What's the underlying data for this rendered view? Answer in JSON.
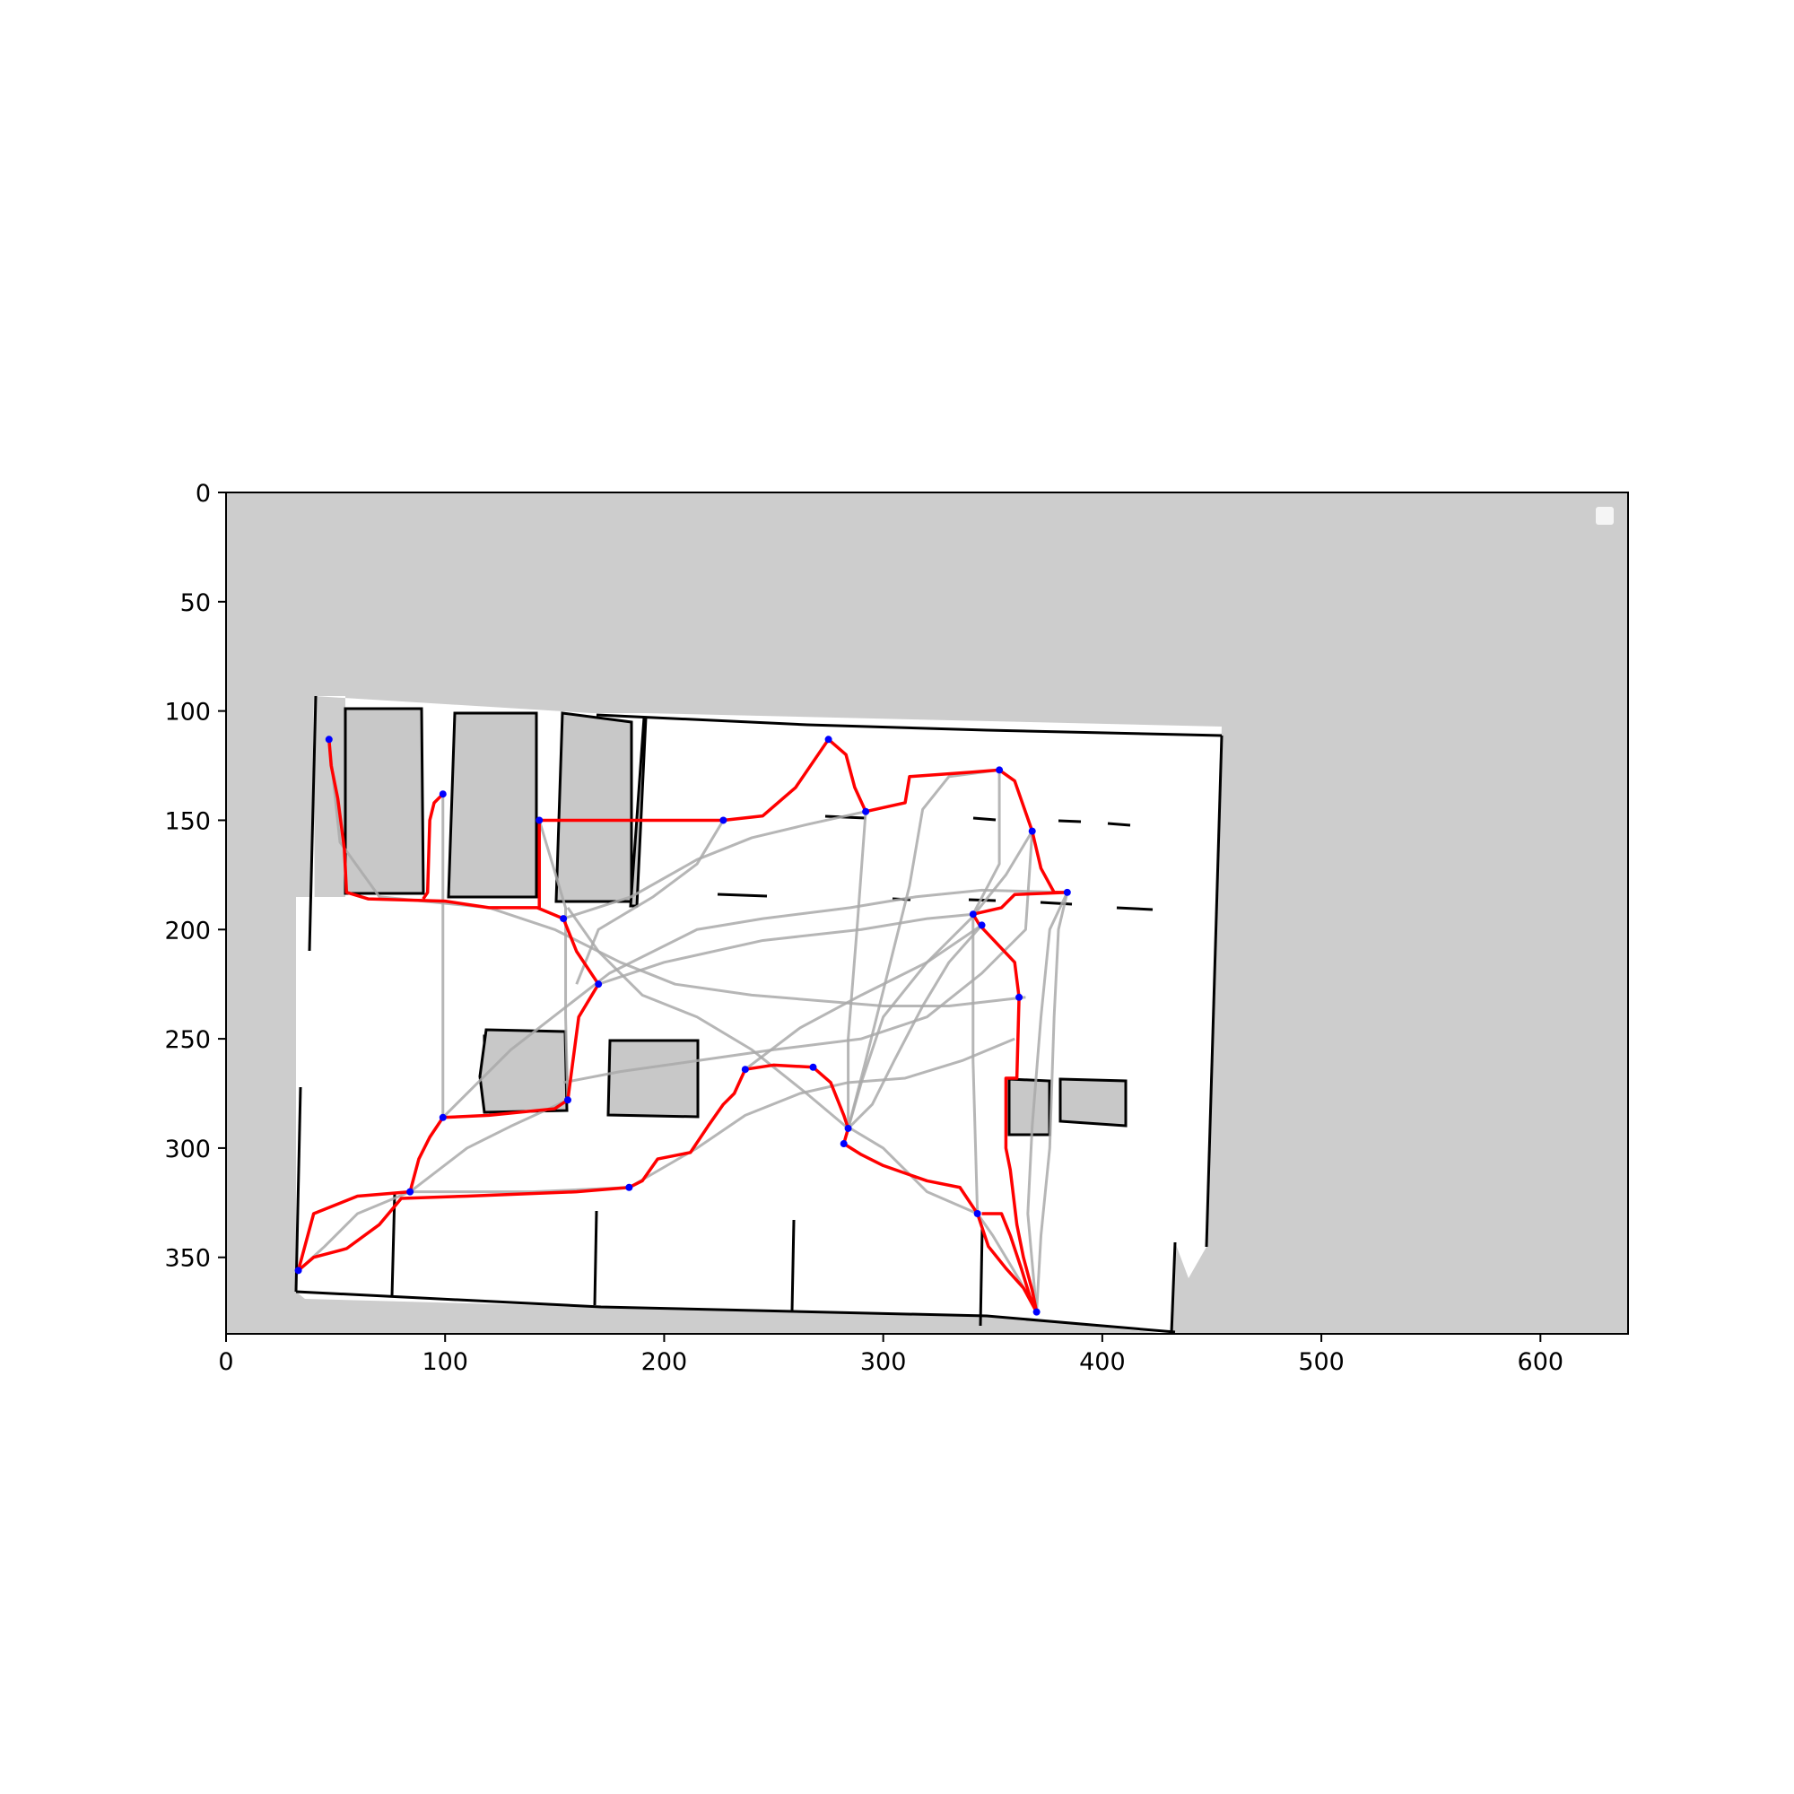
{
  "chart_data": {
    "type": "line",
    "title": "",
    "xlabel": "",
    "ylabel": "",
    "xlim": [
      0,
      640
    ],
    "ylim": [
      385,
      0
    ],
    "x_ticks": [
      "0",
      "100",
      "200",
      "300",
      "400",
      "500",
      "600"
    ],
    "y_ticks": [
      "0",
      "50",
      "100",
      "150",
      "200",
      "250",
      "300",
      "350"
    ],
    "grid": false,
    "legend": "top-right, empty",
    "background_image": "occupancy grid map: gray unknown area, white free space, black walls and obstacles",
    "colors": {
      "unknown": "#cdcdcd",
      "free": "#ffffff",
      "wall": "#000000",
      "path": "#ff0000",
      "waypoint": "#0000ff",
      "alt_paths": "#a9a9a9"
    },
    "series": [
      {
        "kind": "path",
        "color": "#ff0000",
        "points": [
          [
            47,
            113
          ],
          [
            48,
            125
          ],
          [
            51,
            140
          ],
          [
            54,
            163
          ],
          [
            55,
            183
          ],
          [
            65,
            186
          ],
          [
            100,
            187
          ],
          [
            120,
            190
          ],
          [
            142,
            190
          ],
          [
            154,
            195
          ],
          [
            160,
            210
          ],
          [
            170,
            225
          ],
          [
            161,
            240
          ],
          [
            156,
            278
          ],
          [
            150,
            282
          ],
          [
            120,
            285
          ],
          [
            99,
            286
          ],
          [
            93,
            295
          ],
          [
            88,
            305
          ],
          [
            84,
            320
          ],
          [
            60,
            322
          ],
          [
            40,
            330
          ],
          [
            33,
            356
          ]
        ]
      },
      {
        "kind": "path",
        "color": "#ff0000",
        "points": [
          [
            99,
            138
          ],
          [
            95,
            142
          ],
          [
            93,
            150
          ],
          [
            92,
            183
          ],
          [
            90,
            186
          ]
        ]
      },
      {
        "kind": "path",
        "color": "#ff0000",
        "points": [
          [
            143,
            150
          ],
          [
            143,
            190
          ]
        ]
      },
      {
        "kind": "path",
        "color": "#ff0000",
        "points": [
          [
            143,
            150
          ],
          [
            190,
            150
          ],
          [
            227,
            150
          ],
          [
            245,
            148
          ],
          [
            260,
            135
          ],
          [
            275,
            113
          ],
          [
            283,
            120
          ],
          [
            287,
            135
          ],
          [
            292,
            146
          ],
          [
            310,
            142
          ],
          [
            312,
            130
          ],
          [
            340,
            128
          ],
          [
            353,
            127
          ],
          [
            360,
            132
          ],
          [
            368,
            155
          ],
          [
            372,
            172
          ],
          [
            378,
            183
          ],
          [
            384,
            183
          ],
          [
            360,
            184
          ],
          [
            354,
            190
          ],
          [
            341,
            193
          ],
          [
            344,
            198
          ],
          [
            360,
            215
          ],
          [
            362,
            231
          ],
          [
            361,
            268
          ],
          [
            356,
            268
          ],
          [
            356,
            300
          ],
          [
            358,
            310
          ],
          [
            361,
            335
          ],
          [
            364,
            350
          ],
          [
            368,
            365
          ],
          [
            370,
            375
          ]
        ]
      },
      {
        "kind": "path",
        "color": "#ff0000",
        "points": [
          [
            33,
            356
          ],
          [
            40,
            350
          ],
          [
            55,
            346
          ],
          [
            70,
            335
          ],
          [
            80,
            323
          ],
          [
            110,
            322
          ],
          [
            160,
            320
          ],
          [
            184,
            318
          ],
          [
            190,
            315
          ],
          [
            197,
            305
          ],
          [
            212,
            302
          ],
          [
            220,
            290
          ],
          [
            227,
            280
          ],
          [
            232,
            275
          ],
          [
            237,
            264
          ],
          [
            250,
            262
          ],
          [
            268,
            263
          ],
          [
            276,
            270
          ],
          [
            282,
            285
          ],
          [
            284,
            291
          ],
          [
            282,
            298
          ],
          [
            290,
            303
          ],
          [
            300,
            308
          ],
          [
            320,
            315
          ],
          [
            335,
            318
          ],
          [
            343,
            330
          ],
          [
            348,
            345
          ],
          [
            356,
            355
          ],
          [
            364,
            364
          ],
          [
            370,
            375
          ]
        ]
      },
      {
        "kind": "path",
        "color": "#ff0000",
        "points": [
          [
            370,
            375
          ],
          [
            367,
            368
          ],
          [
            363,
            355
          ],
          [
            358,
            340
          ],
          [
            354,
            330
          ],
          [
            345,
            330
          ]
        ]
      }
    ],
    "waypoints": [
      [
        47,
        113
      ],
      [
        99,
        138
      ],
      [
        143,
        150
      ],
      [
        227,
        150
      ],
      [
        275,
        113
      ],
      [
        292,
        146
      ],
      [
        353,
        127
      ],
      [
        368,
        155
      ],
      [
        384,
        183
      ],
      [
        341,
        193
      ],
      [
        345,
        198
      ],
      [
        362,
        231
      ],
      [
        154,
        195
      ],
      [
        170,
        225
      ],
      [
        156,
        278
      ],
      [
        99,
        286
      ],
      [
        84,
        320
      ],
      [
        184,
        318
      ],
      [
        237,
        264
      ],
      [
        268,
        263
      ],
      [
        284,
        291
      ],
      [
        282,
        298
      ],
      [
        343,
        330
      ],
      [
        370,
        375
      ],
      [
        33,
        356
      ]
    ],
    "alt_paths": [
      [
        [
          47,
          113
        ],
        [
          52,
          160
        ],
        [
          70,
          185
        ],
        [
          120,
          190
        ],
        [
          150,
          200
        ],
        [
          180,
          215
        ],
        [
          205,
          225
        ],
        [
          240,
          230
        ],
        [
          300,
          235
        ],
        [
          330,
          235
        ],
        [
          365,
          231
        ]
      ],
      [
        [
          99,
          138
        ],
        [
          99,
          250
        ],
        [
          99,
          286
        ]
      ],
      [
        [
          143,
          150
        ],
        [
          155,
          190
        ],
        [
          155,
          240
        ],
        [
          156,
          278
        ]
      ],
      [
        [
          156,
          190
        ],
        [
          170,
          210
        ],
        [
          190,
          230
        ],
        [
          215,
          240
        ],
        [
          240,
          255
        ],
        [
          265,
          275
        ],
        [
          284,
          291
        ]
      ],
      [
        [
          99,
          286
        ],
        [
          130,
          255
        ],
        [
          175,
          220
        ],
        [
          215,
          200
        ],
        [
          245,
          195
        ],
        [
          285,
          190
        ],
        [
          315,
          185
        ],
        [
          345,
          182
        ],
        [
          384,
          183
        ]
      ],
      [
        [
          154,
          195
        ],
        [
          185,
          185
        ],
        [
          215,
          168
        ],
        [
          240,
          158
        ],
        [
          265,
          152
        ],
        [
          292,
          146
        ]
      ],
      [
        [
          170,
          225
        ],
        [
          200,
          215
        ],
        [
          245,
          205
        ],
        [
          290,
          200
        ],
        [
          320,
          195
        ],
        [
          341,
          193
        ]
      ],
      [
        [
          154,
          270
        ],
        [
          180,
          265
        ],
        [
          215,
          260
        ],
        [
          250,
          255
        ],
        [
          290,
          250
        ],
        [
          320,
          240
        ],
        [
          345,
          220
        ],
        [
          365,
          200
        ],
        [
          368,
          155
        ]
      ],
      [
        [
          184,
          318
        ],
        [
          215,
          300
        ],
        [
          237,
          285
        ],
        [
          262,
          275
        ],
        [
          284,
          270
        ],
        [
          310,
          268
        ],
        [
          336,
          260
        ],
        [
          360,
          250
        ]
      ],
      [
        [
          237,
          264
        ],
        [
          262,
          245
        ],
        [
          290,
          230
        ],
        [
          320,
          215
        ],
        [
          345,
          198
        ]
      ],
      [
        [
          227,
          150
        ],
        [
          215,
          170
        ],
        [
          195,
          185
        ],
        [
          170,
          200
        ],
        [
          160,
          225
        ]
      ],
      [
        [
          292,
          146
        ],
        [
          288,
          200
        ],
        [
          284,
          250
        ],
        [
          284,
          291
        ]
      ],
      [
        [
          353,
          127
        ],
        [
          330,
          130
        ],
        [
          318,
          145
        ],
        [
          312,
          180
        ],
        [
          302,
          220
        ],
        [
          292,
          260
        ],
        [
          284,
          291
        ]
      ],
      [
        [
          368,
          155
        ],
        [
          356,
          175
        ],
        [
          340,
          195
        ],
        [
          320,
          215
        ],
        [
          300,
          240
        ],
        [
          290,
          270
        ],
        [
          284,
          291
        ]
      ],
      [
        [
          345,
          198
        ],
        [
          330,
          215
        ],
        [
          318,
          235
        ],
        [
          305,
          260
        ],
        [
          295,
          280
        ],
        [
          284,
          291
        ]
      ],
      [
        [
          341,
          193
        ],
        [
          341,
          260
        ],
        [
          343,
          330
        ]
      ],
      [
        [
          384,
          183
        ],
        [
          376,
          200
        ],
        [
          372,
          240
        ],
        [
          368,
          290
        ],
        [
          366,
          330
        ],
        [
          370,
          375
        ]
      ],
      [
        [
          343,
          330
        ],
        [
          320,
          320
        ],
        [
          300,
          300
        ],
        [
          285,
          291
        ]
      ],
      [
        [
          156,
          278
        ],
        [
          130,
          290
        ],
        [
          110,
          300
        ],
        [
          84,
          320
        ]
      ],
      [
        [
          84,
          320
        ],
        [
          60,
          330
        ],
        [
          45,
          345
        ],
        [
          33,
          356
        ]
      ],
      [
        [
          84,
          320
        ],
        [
          140,
          320
        ],
        [
          184,
          318
        ]
      ],
      [
        [
          353,
          127
        ],
        [
          353,
          170
        ],
        [
          341,
          193
        ]
      ],
      [
        [
          370,
          375
        ],
        [
          362,
          360
        ],
        [
          350,
          340
        ],
        [
          343,
          330
        ]
      ],
      [
        [
          384,
          183
        ],
        [
          380,
          200
        ],
        [
          378,
          240
        ],
        [
          376,
          300
        ],
        [
          372,
          340
        ],
        [
          370,
          375
        ]
      ]
    ]
  }
}
